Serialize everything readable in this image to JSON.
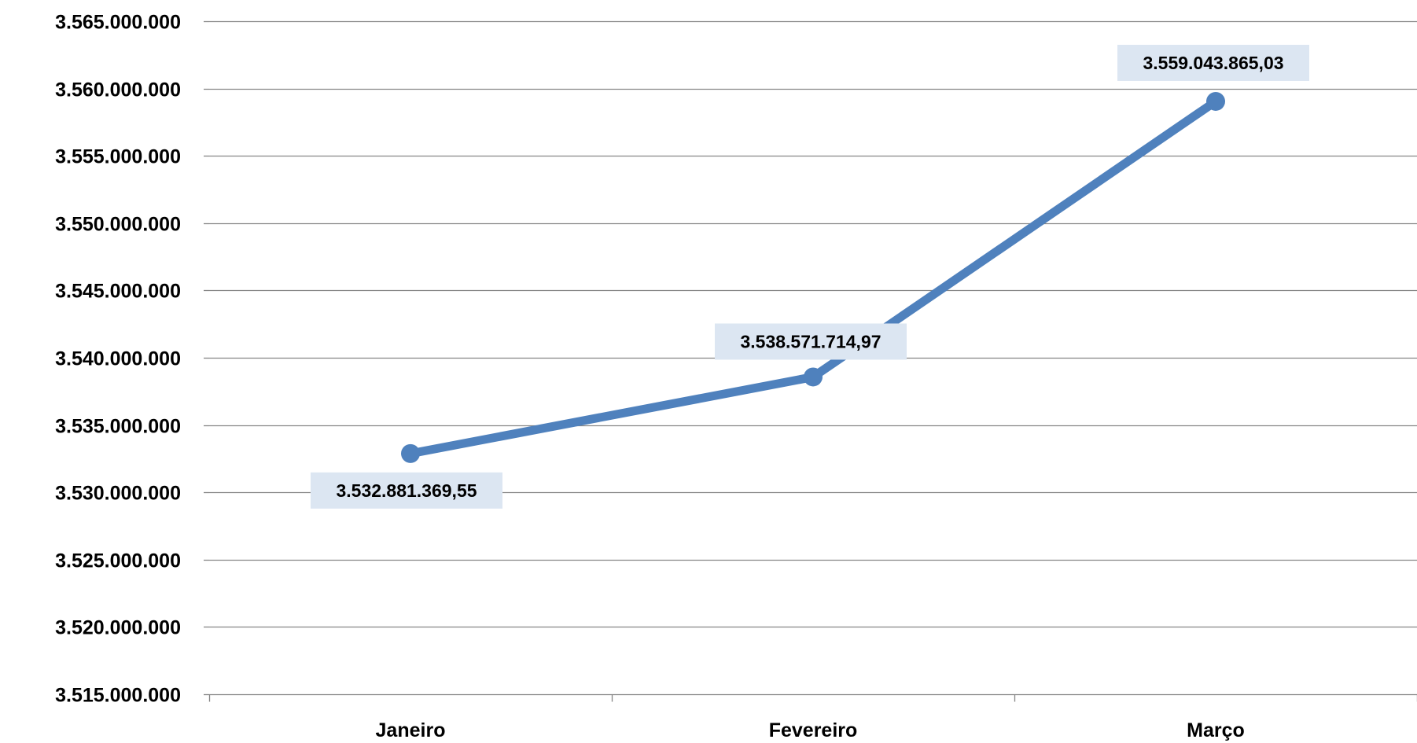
{
  "chart_data": {
    "type": "line",
    "title": "",
    "xlabel": "",
    "ylabel": "",
    "categories": [
      "Janeiro",
      "Fevereiro",
      "Março"
    ],
    "series": [
      {
        "values": [
          3532881369.55,
          3538571714.97,
          3559043865.03
        ],
        "data_labels": [
          "3.532.881.369,55",
          "3.538.571.714,97",
          "3.559.043.865,03"
        ]
      }
    ],
    "ylim": [
      3515000000,
      3565000000
    ],
    "y_ticks": [
      3515000000,
      3520000000,
      3525000000,
      3530000000,
      3535000000,
      3540000000,
      3545000000,
      3550000000,
      3555000000,
      3560000000,
      3565000000
    ],
    "y_tick_labels": [
      "3.515.000.000",
      "3.520.000.000",
      "3.525.000.000",
      "3.530.000.000",
      "3.535.000.000",
      "3.540.000.000",
      "3.545.000.000",
      "3.550.000.000",
      "3.555.000.000",
      "3.560.000.000",
      "3.565.000.000"
    ],
    "grid": true,
    "legend": "none",
    "colors": {
      "line": "#4F81BD",
      "gridline": "#868686",
      "label_background": "#DCE6F2"
    }
  }
}
